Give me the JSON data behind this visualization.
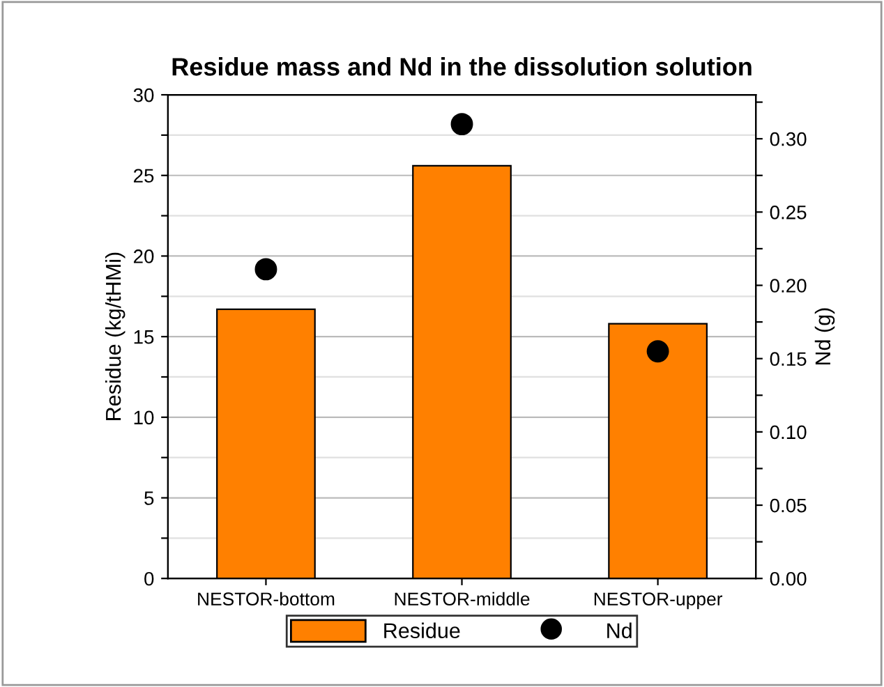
{
  "chart_data": {
    "type": "bar",
    "title": "Residue mass and Nd in the dissolution solution",
    "ylabel": "Residue (kg/tHMi)",
    "y2label": "Nd (g)",
    "categories": [
      "NESTOR-bottom",
      "NESTOR-middle",
      "NESTOR-upper"
    ],
    "series": [
      {
        "name": "Residue",
        "color": "#ff8000",
        "values": [
          16.7,
          25.6,
          15.8
        ]
      },
      {
        "name": "Nd",
        "type": "scatter",
        "axis": "y2",
        "color": "#000000",
        "values": [
          0.211,
          0.31,
          0.155
        ]
      }
    ],
    "ylim": [
      0,
      30
    ],
    "yticks": [
      0,
      {
        "value": 2.5,
        "label": null
      },
      5,
      {
        "value": 7.5,
        "label": null
      },
      10,
      {
        "value": 12.5,
        "label": null
      },
      15,
      {
        "value": 17.5,
        "label": null
      },
      20,
      {
        "value": 22.5,
        "label": null
      },
      25,
      {
        "value": 27.5,
        "label": null
      },
      30
    ],
    "y2lim": [
      0,
      0.33
    ],
    "y2ticks": [
      {
        "value": 0,
        "label": "0.00"
      },
      {
        "value": 0.025,
        "label": null
      },
      {
        "value": 0.05,
        "label": "0.05"
      },
      {
        "value": 0.075,
        "label": null
      },
      {
        "value": 0.1,
        "label": "0.10"
      },
      {
        "value": 0.125,
        "label": null
      },
      {
        "value": 0.15,
        "label": "0.15"
      },
      {
        "value": 0.175,
        "label": null
      },
      {
        "value": 0.2,
        "label": "0.20"
      },
      {
        "value": 0.225,
        "label": null
      },
      {
        "value": 0.25,
        "label": "0.25"
      },
      {
        "value": 0.275,
        "label": null
      },
      {
        "value": 0.3,
        "label": "0.30"
      },
      {
        "value": 0.325,
        "label": null
      }
    ],
    "grid": "y",
    "legend": "bottom",
    "marker": "circle"
  }
}
